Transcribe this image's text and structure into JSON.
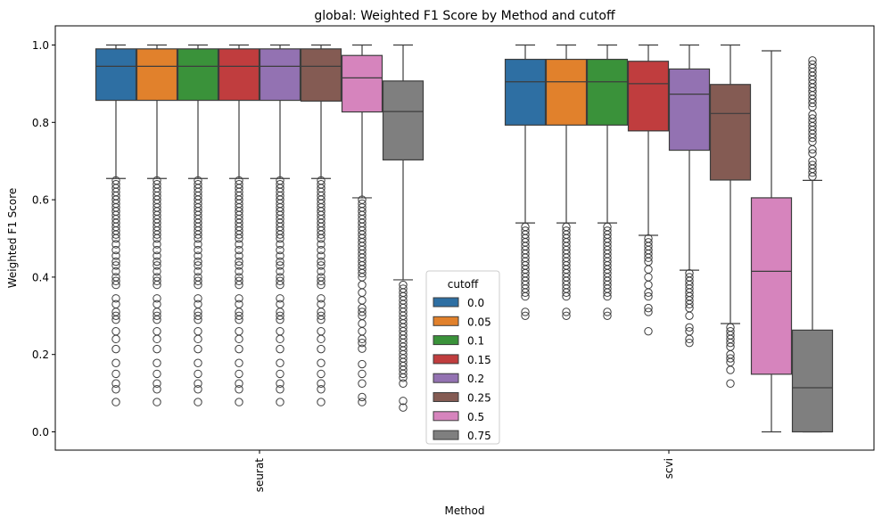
{
  "chart_data": {
    "type": "box",
    "title": "global: Weighted F1 Score by Method and cutoff",
    "xlabel": "Method",
    "ylabel": "Weighted F1 Score",
    "ylim": [
      -0.05,
      1.05
    ],
    "yticks": [
      "0.0",
      "0.2",
      "0.4",
      "0.6",
      "0.8",
      "1.0"
    ],
    "categories": [
      "seurat",
      "scvi"
    ],
    "legend": {
      "title": "cutoff",
      "position": "center"
    },
    "series": [
      {
        "name": "0.0",
        "color": "#2e6fa3",
        "seurat": {
          "whislo": 0.655,
          "q1": 0.857,
          "median": 0.945,
          "q3": 0.99,
          "whishi": 1.0
        },
        "scvi": {
          "whislo": 0.54,
          "q1": 0.793,
          "median": 0.905,
          "q3": 0.963,
          "whishi": 1.0
        }
      },
      {
        "name": "0.05",
        "color": "#e1812c",
        "seurat": {
          "whislo": 0.655,
          "q1": 0.857,
          "median": 0.945,
          "q3": 0.99,
          "whishi": 1.0
        },
        "scvi": {
          "whislo": 0.54,
          "q1": 0.793,
          "median": 0.905,
          "q3": 0.963,
          "whishi": 1.0
        }
      },
      {
        "name": "0.1",
        "color": "#3a923a",
        "seurat": {
          "whislo": 0.655,
          "q1": 0.857,
          "median": 0.945,
          "q3": 0.99,
          "whishi": 1.0
        },
        "scvi": {
          "whislo": 0.54,
          "q1": 0.793,
          "median": 0.905,
          "q3": 0.963,
          "whishi": 1.0
        }
      },
      {
        "name": "0.15",
        "color": "#c03d3e",
        "seurat": {
          "whislo": 0.655,
          "q1": 0.857,
          "median": 0.945,
          "q3": 0.99,
          "whishi": 1.0
        },
        "scvi": {
          "whislo": 0.508,
          "q1": 0.778,
          "median": 0.9,
          "q3": 0.958,
          "whishi": 1.0
        }
      },
      {
        "name": "0.2",
        "color": "#9372b2",
        "seurat": {
          "whislo": 0.655,
          "q1": 0.857,
          "median": 0.945,
          "q3": 0.99,
          "whishi": 1.0
        },
        "scvi": {
          "whislo": 0.418,
          "q1": 0.728,
          "median": 0.873,
          "q3": 0.938,
          "whishi": 1.0
        }
      },
      {
        "name": "0.25",
        "color": "#845b53",
        "seurat": {
          "whislo": 0.655,
          "q1": 0.855,
          "median": 0.945,
          "q3": 0.99,
          "whishi": 1.0
        },
        "scvi": {
          "whislo": 0.28,
          "q1": 0.651,
          "median": 0.823,
          "q3": 0.898,
          "whishi": 1.0
        }
      },
      {
        "name": "0.5",
        "color": "#d684bd",
        "seurat": {
          "whislo": 0.605,
          "q1": 0.827,
          "median": 0.915,
          "q3": 0.973,
          "whishi": 1.0
        },
        "scvi": {
          "whislo": 0.0,
          "q1": 0.149,
          "median": 0.415,
          "q3": 0.605,
          "whishi": 0.985
        }
      },
      {
        "name": "0.75",
        "color": "#7f7f7f",
        "seurat": {
          "whislo": 0.393,
          "q1": 0.703,
          "median": 0.828,
          "q3": 0.907,
          "whishi": 1.0
        },
        "scvi": {
          "whislo": 0.0,
          "q1": 0.0,
          "median": 0.114,
          "q3": 0.263,
          "whishi": 0.65
        }
      }
    ],
    "outliers": {
      "seurat": [
        {
          "values": [
            0.077,
            0.11,
            0.125,
            0.15,
            0.178,
            0.214,
            0.24,
            0.26,
            0.29,
            0.3,
            0.31,
            0.33,
            0.345,
            0.38,
            0.39,
            0.4,
            0.415,
            0.43,
            0.44,
            0.455,
            0.47,
            0.485,
            0.5,
            0.51,
            0.52,
            0.53,
            0.54,
            0.55,
            0.56,
            0.57,
            0.58,
            0.59,
            0.6,
            0.61,
            0.62,
            0.63,
            0.64,
            0.65
          ]
        },
        {
          "values": [
            0.077,
            0.11,
            0.125,
            0.15,
            0.178,
            0.214,
            0.24,
            0.26,
            0.29,
            0.3,
            0.31,
            0.33,
            0.345,
            0.38,
            0.39,
            0.4,
            0.415,
            0.43,
            0.44,
            0.455,
            0.47,
            0.485,
            0.5,
            0.51,
            0.52,
            0.53,
            0.54,
            0.55,
            0.56,
            0.57,
            0.58,
            0.59,
            0.6,
            0.61,
            0.62,
            0.63,
            0.64,
            0.65
          ]
        },
        {
          "values": [
            0.077,
            0.11,
            0.125,
            0.15,
            0.178,
            0.214,
            0.24,
            0.26,
            0.29,
            0.3,
            0.31,
            0.33,
            0.345,
            0.38,
            0.39,
            0.4,
            0.415,
            0.43,
            0.44,
            0.455,
            0.47,
            0.485,
            0.5,
            0.51,
            0.52,
            0.53,
            0.54,
            0.55,
            0.56,
            0.57,
            0.58,
            0.59,
            0.6,
            0.61,
            0.62,
            0.63,
            0.64,
            0.65
          ]
        },
        {
          "values": [
            0.077,
            0.11,
            0.125,
            0.15,
            0.178,
            0.214,
            0.24,
            0.26,
            0.29,
            0.3,
            0.31,
            0.33,
            0.345,
            0.38,
            0.39,
            0.4,
            0.415,
            0.43,
            0.44,
            0.455,
            0.47,
            0.485,
            0.5,
            0.51,
            0.52,
            0.53,
            0.54,
            0.55,
            0.56,
            0.57,
            0.58,
            0.59,
            0.6,
            0.61,
            0.62,
            0.63,
            0.64,
            0.65
          ]
        },
        {
          "values": [
            0.077,
            0.11,
            0.125,
            0.15,
            0.178,
            0.214,
            0.24,
            0.26,
            0.29,
            0.3,
            0.31,
            0.33,
            0.345,
            0.38,
            0.39,
            0.4,
            0.415,
            0.43,
            0.44,
            0.455,
            0.47,
            0.485,
            0.5,
            0.51,
            0.52,
            0.53,
            0.54,
            0.55,
            0.56,
            0.57,
            0.58,
            0.59,
            0.6,
            0.61,
            0.62,
            0.63,
            0.64,
            0.65
          ]
        },
        {
          "values": [
            0.077,
            0.11,
            0.125,
            0.15,
            0.178,
            0.214,
            0.24,
            0.26,
            0.29,
            0.3,
            0.31,
            0.33,
            0.345,
            0.38,
            0.39,
            0.4,
            0.415,
            0.43,
            0.44,
            0.455,
            0.47,
            0.485,
            0.5,
            0.51,
            0.52,
            0.53,
            0.54,
            0.55,
            0.56,
            0.57,
            0.58,
            0.59,
            0.6,
            0.61,
            0.62,
            0.63,
            0.64,
            0.65
          ]
        },
        {
          "values": [
            0.077,
            0.09,
            0.125,
            0.15,
            0.175,
            0.215,
            0.23,
            0.24,
            0.26,
            0.28,
            0.3,
            0.31,
            0.32,
            0.34,
            0.36,
            0.38,
            0.4,
            0.41,
            0.42,
            0.43,
            0.44,
            0.45,
            0.46,
            0.47,
            0.48,
            0.49,
            0.5,
            0.51,
            0.52,
            0.53,
            0.54,
            0.55,
            0.56,
            0.57,
            0.58,
            0.59,
            0.6
          ]
        },
        {
          "values": [
            0.063,
            0.08,
            0.125,
            0.14,
            0.15,
            0.16,
            0.17,
            0.18,
            0.19,
            0.2,
            0.21,
            0.22,
            0.23,
            0.24,
            0.25,
            0.26,
            0.27,
            0.28,
            0.29,
            0.3,
            0.31,
            0.32,
            0.33,
            0.34,
            0.35,
            0.36,
            0.37,
            0.38
          ]
        }
      ],
      "scvi": [
        {
          "values": [
            0.3,
            0.31,
            0.35,
            0.36,
            0.37,
            0.38,
            0.39,
            0.4,
            0.41,
            0.42,
            0.43,
            0.44,
            0.45,
            0.46,
            0.47,
            0.48,
            0.49,
            0.5,
            0.51,
            0.52,
            0.53
          ]
        },
        {
          "values": [
            0.3,
            0.31,
            0.35,
            0.36,
            0.37,
            0.38,
            0.39,
            0.4,
            0.41,
            0.42,
            0.43,
            0.44,
            0.45,
            0.46,
            0.47,
            0.48,
            0.49,
            0.5,
            0.51,
            0.52,
            0.53
          ]
        },
        {
          "values": [
            0.3,
            0.31,
            0.35,
            0.36,
            0.37,
            0.38,
            0.39,
            0.4,
            0.41,
            0.42,
            0.43,
            0.44,
            0.45,
            0.46,
            0.47,
            0.48,
            0.49,
            0.5,
            0.51,
            0.52,
            0.53
          ]
        },
        {
          "values": [
            0.26,
            0.31,
            0.32,
            0.35,
            0.36,
            0.38,
            0.4,
            0.42,
            0.44,
            0.45,
            0.46,
            0.47,
            0.48,
            0.49,
            0.5
          ]
        },
        {
          "values": [
            0.23,
            0.24,
            0.26,
            0.27,
            0.3,
            0.32,
            0.33,
            0.34,
            0.35,
            0.36,
            0.37,
            0.38,
            0.39,
            0.4,
            0.41
          ]
        },
        {
          "values": [
            0.125,
            0.16,
            0.18,
            0.19,
            0.2,
            0.22,
            0.23,
            0.24,
            0.25,
            0.26,
            0.27
          ]
        },
        {
          "values": []
        },
        {
          "values": [
            0.66,
            0.67,
            0.68,
            0.69,
            0.7,
            0.72,
            0.73,
            0.75,
            0.76,
            0.77,
            0.78,
            0.79,
            0.8,
            0.81,
            0.82,
            0.84,
            0.85,
            0.86,
            0.87,
            0.88,
            0.89,
            0.9,
            0.91,
            0.92,
            0.93,
            0.94,
            0.95,
            0.96
          ]
        }
      ]
    }
  }
}
